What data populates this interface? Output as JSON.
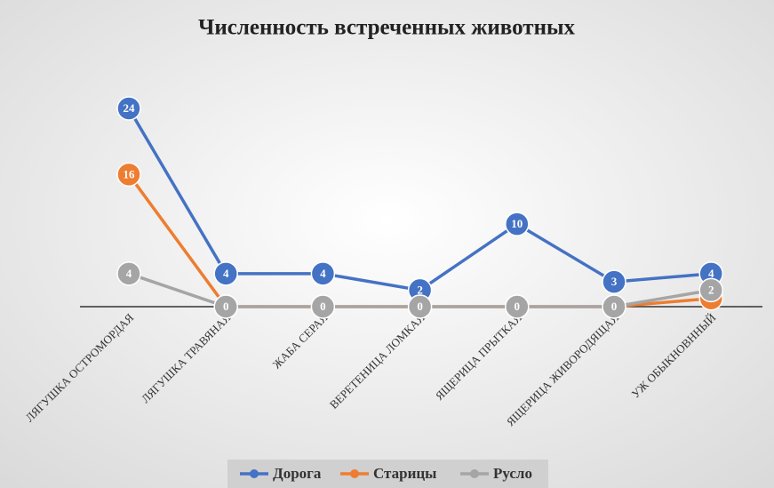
{
  "chart_data": {
    "type": "line",
    "title": "Численность встреченных животных",
    "categories": [
      "ЛЯГУШКА ОСТРОМОРДАЯ",
      "ЛЯГУШКА ТРАВЯНАЯ",
      "ЖАБА СЕРАЯ",
      "ВЕРЕТЕНИЦА ЛОМКАЯ",
      "ЯЩЕРИЦА ПРЫТКАЯ",
      "ЯЩЕРИЦА ЖИВОРОДЯЩАЯ",
      "УЖ ОБЫКНОВННЫЙ"
    ],
    "series": [
      {
        "name": "Дорога",
        "color": "#4472c4",
        "values": [
          24,
          4,
          4,
          2,
          10,
          3,
          4
        ]
      },
      {
        "name": "Старицы",
        "color": "#ed7d31",
        "values": [
          16,
          0,
          0,
          0,
          0,
          0,
          1
        ]
      },
      {
        "name": "Русло",
        "color": "#a5a5a5",
        "values": [
          4,
          0,
          0,
          0,
          0,
          0,
          2
        ]
      }
    ],
    "ylim": [
      0,
      24
    ],
    "legend": "bottom"
  }
}
